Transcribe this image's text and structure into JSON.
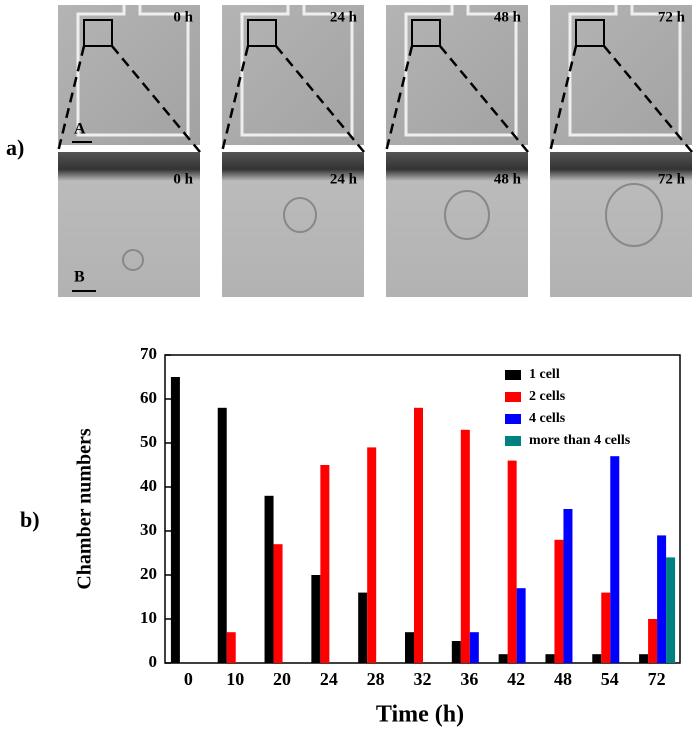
{
  "panel_a": {
    "label": "a)",
    "top_labels": [
      "0 h",
      "24 h",
      "48 h",
      "72 h"
    ],
    "bottom_labels": [
      "0 h",
      "24 h",
      "48 h",
      "72 h"
    ],
    "top_scale": "A",
    "bottom_scale": "B"
  },
  "chart_data": {
    "type": "bar",
    "panel_label": "b)",
    "x_label": "Time (h)",
    "y_label": "Chamber numbers",
    "categories": [
      "0",
      "10",
      "20",
      "24",
      "28",
      "32",
      "36",
      "42",
      "48",
      "54",
      "72"
    ],
    "series": [
      {
        "name": "1 cell",
        "color": "#000000",
        "values": [
          65,
          58,
          38,
          20,
          16,
          7,
          5,
          2,
          2,
          2,
          2
        ]
      },
      {
        "name": "2 cells",
        "color": "#ff0000",
        "values": [
          0,
          7,
          27,
          45,
          49,
          58,
          53,
          46,
          28,
          16,
          10
        ]
      },
      {
        "name": "4 cells",
        "color": "#0000ff",
        "values": [
          0,
          0,
          0,
          0,
          0,
          0,
          7,
          17,
          35,
          47,
          29
        ]
      },
      {
        "name": "more than 4 cells",
        "color": "#008080",
        "values": [
          0,
          0,
          0,
          0,
          0,
          0,
          0,
          0,
          0,
          0,
          24
        ]
      }
    ],
    "ylim": [
      0,
      70
    ],
    "yticks": [
      0,
      10,
      20,
      30,
      40,
      50,
      60,
      70
    ],
    "legend": "upper right"
  }
}
